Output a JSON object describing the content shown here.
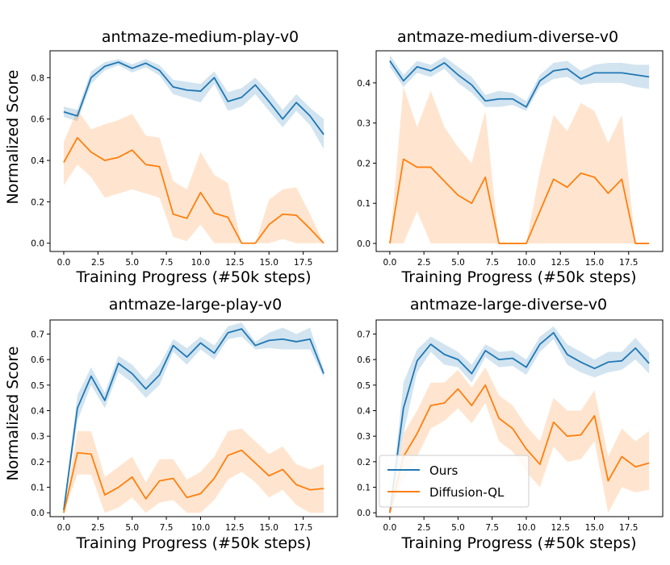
{
  "chart_data": [
    {
      "type": "line",
      "title": "antmaze-medium-play-v0",
      "xlabel": "Training Progress (#50k steps)",
      "ylabel": "Normalized Score",
      "xlim": [
        -1,
        20
      ],
      "ylim": [
        -0.04,
        0.93
      ],
      "xticks": [
        0,
        2.5,
        5,
        7.5,
        10,
        12.5,
        15,
        17.5
      ],
      "xtick_labels": [
        "0.0",
        "2.5",
        "5.0",
        "7.5",
        "10.0",
        "12.5",
        "15.0",
        "17.5"
      ],
      "yticks": [
        0,
        0.2,
        0.4,
        0.6,
        0.8
      ],
      "ytick_labels": [
        "0.0",
        "0.2",
        "0.4",
        "0.6",
        "0.8"
      ],
      "x": [
        0,
        1,
        2,
        3,
        4,
        5,
        6,
        7,
        8,
        9,
        10,
        11,
        12,
        13,
        14,
        15,
        16,
        17,
        18,
        19
      ],
      "series": [
        {
          "name": "Ours",
          "color": "#1f77b4",
          "values": [
            0.635,
            0.615,
            0.8,
            0.855,
            0.875,
            0.845,
            0.87,
            0.835,
            0.755,
            0.74,
            0.735,
            0.8,
            0.685,
            0.705,
            0.765,
            0.685,
            0.6,
            0.68,
            0.615,
            0.525
          ],
          "lower": [
            0.61,
            0.59,
            0.77,
            0.835,
            0.86,
            0.825,
            0.85,
            0.81,
            0.72,
            0.7,
            0.68,
            0.77,
            0.64,
            0.66,
            0.72,
            0.64,
            0.56,
            0.64,
            0.57,
            0.455
          ],
          "upper": [
            0.66,
            0.645,
            0.83,
            0.875,
            0.89,
            0.865,
            0.89,
            0.86,
            0.79,
            0.78,
            0.77,
            0.83,
            0.73,
            0.75,
            0.8,
            0.73,
            0.645,
            0.72,
            0.655,
            0.6
          ]
        },
        {
          "name": "Diffusion-QL",
          "color": "#ff7f0e",
          "values": [
            0.39,
            0.51,
            0.44,
            0.4,
            0.415,
            0.45,
            0.38,
            0.37,
            0.14,
            0.12,
            0.245,
            0.145,
            0.125,
            0.0,
            0.0,
            0.09,
            0.14,
            0.135,
            0.07,
            0.0
          ],
          "lower": [
            0.28,
            0.38,
            0.32,
            0.22,
            0.24,
            0.26,
            0.24,
            0.22,
            0.03,
            0.01,
            0.09,
            0.0,
            0.0,
            0.0,
            0.0,
            0.0,
            0.02,
            0.0,
            0.0,
            0.0
          ],
          "upper": [
            0.49,
            0.645,
            0.55,
            0.575,
            0.595,
            0.625,
            0.52,
            0.51,
            0.3,
            0.26,
            0.44,
            0.33,
            0.29,
            0.0,
            0.0,
            0.21,
            0.26,
            0.27,
            0.14,
            0.0
          ]
        }
      ]
    },
    {
      "type": "line",
      "title": "antmaze-medium-diverse-v0",
      "xlabel": "Training Progress (#50k steps)",
      "ylabel": "",
      "xlim": [
        -1,
        20
      ],
      "ylim": [
        -0.02,
        0.48
      ],
      "xticks": [
        0,
        2.5,
        5,
        7.5,
        10,
        12.5,
        15,
        17.5
      ],
      "xtick_labels": [
        "0.0",
        "2.5",
        "5.0",
        "7.5",
        "10.0",
        "12.5",
        "15.0",
        "17.5"
      ],
      "yticks": [
        0,
        0.1,
        0.2,
        0.3,
        0.4
      ],
      "ytick_labels": [
        "0.0",
        "0.1",
        "0.2",
        "0.3",
        "0.4"
      ],
      "x": [
        0,
        1,
        2,
        3,
        4,
        5,
        6,
        7,
        8,
        9,
        10,
        11,
        12,
        13,
        14,
        15,
        16,
        17,
        18,
        19
      ],
      "series": [
        {
          "name": "Ours",
          "color": "#1f77b4",
          "values": [
            0.455,
            0.405,
            0.44,
            0.43,
            0.45,
            0.42,
            0.395,
            0.355,
            0.36,
            0.36,
            0.34,
            0.405,
            0.43,
            0.435,
            0.41,
            0.425,
            0.425,
            0.425,
            0.42,
            0.415
          ],
          "lower": [
            0.44,
            0.39,
            0.425,
            0.415,
            0.435,
            0.4,
            0.375,
            0.34,
            0.34,
            0.345,
            0.33,
            0.39,
            0.41,
            0.415,
            0.395,
            0.4,
            0.4,
            0.4,
            0.39,
            0.385
          ],
          "upper": [
            0.47,
            0.42,
            0.455,
            0.445,
            0.465,
            0.44,
            0.415,
            0.37,
            0.38,
            0.375,
            0.355,
            0.42,
            0.45,
            0.455,
            0.43,
            0.445,
            0.45,
            0.45,
            0.445,
            0.445
          ]
        },
        {
          "name": "Diffusion-QL",
          "color": "#ff7f0e",
          "values": [
            0.0,
            0.21,
            0.19,
            0.19,
            0.155,
            0.12,
            0.1,
            0.165,
            0.0,
            0.0,
            0.0,
            0.08,
            0.16,
            0.14,
            0.175,
            0.165,
            0.125,
            0.16,
            0.0,
            0.0
          ],
          "lower": [
            0.0,
            0.0,
            0.08,
            0.0,
            0.0,
            0.0,
            0.0,
            0.0,
            0.0,
            0.0,
            0.0,
            0.0,
            0.0,
            0.0,
            0.0,
            0.0,
            0.0,
            0.0,
            0.0,
            0.0
          ],
          "upper": [
            0.0,
            0.39,
            0.29,
            0.38,
            0.29,
            0.24,
            0.2,
            0.33,
            0.0,
            0.0,
            0.0,
            0.18,
            0.32,
            0.28,
            0.35,
            0.33,
            0.25,
            0.32,
            0.0,
            0.0
          ]
        }
      ]
    },
    {
      "type": "line",
      "title": "antmaze-large-play-v0",
      "xlabel": "Training Progress (#50k steps)",
      "ylabel": "Normalized Score",
      "xlim": [
        -1,
        20
      ],
      "ylim": [
        -0.015,
        0.755
      ],
      "xticks": [
        0,
        2.5,
        5,
        7.5,
        10,
        12.5,
        15,
        17.5
      ],
      "xtick_labels": [
        "0.0",
        "2.5",
        "5.0",
        "7.5",
        "10.0",
        "12.5",
        "15.0",
        "17.5"
      ],
      "yticks": [
        0,
        0.1,
        0.2,
        0.3,
        0.4,
        0.5,
        0.6,
        0.7
      ],
      "ytick_labels": [
        "0.0",
        "0.1",
        "0.2",
        "0.3",
        "0.4",
        "0.5",
        "0.6",
        "0.7"
      ],
      "x": [
        0,
        1,
        2,
        3,
        4,
        5,
        6,
        7,
        8,
        9,
        10,
        11,
        12,
        13,
        14,
        15,
        16,
        17,
        18,
        19
      ],
      "series": [
        {
          "name": "Ours",
          "color": "#1f77b4",
          "values": [
            0.01,
            0.41,
            0.535,
            0.44,
            0.585,
            0.545,
            0.485,
            0.54,
            0.655,
            0.61,
            0.665,
            0.625,
            0.705,
            0.72,
            0.655,
            0.675,
            0.68,
            0.67,
            0.68,
            0.545
          ],
          "lower": [
            0.0,
            0.36,
            0.5,
            0.41,
            0.55,
            0.51,
            0.45,
            0.5,
            0.63,
            0.58,
            0.64,
            0.6,
            0.68,
            0.69,
            0.64,
            0.645,
            0.64,
            0.64,
            0.64,
            0.53
          ],
          "upper": [
            0.02,
            0.46,
            0.57,
            0.47,
            0.615,
            0.58,
            0.52,
            0.58,
            0.68,
            0.645,
            0.69,
            0.655,
            0.73,
            0.745,
            0.67,
            0.705,
            0.725,
            0.7,
            0.725,
            0.56
          ]
        },
        {
          "name": "Diffusion-QL",
          "color": "#ff7f0e",
          "values": [
            0.0,
            0.235,
            0.23,
            0.07,
            0.1,
            0.14,
            0.055,
            0.125,
            0.135,
            0.06,
            0.075,
            0.135,
            0.225,
            0.245,
            0.195,
            0.145,
            0.17,
            0.11,
            0.09,
            0.095
          ],
          "lower": [
            0.0,
            0.15,
            0.15,
            0.0,
            0.02,
            0.06,
            0.0,
            0.04,
            0.05,
            0.0,
            0.0,
            0.05,
            0.13,
            0.16,
            0.12,
            0.06,
            0.09,
            0.03,
            0.0,
            0.0
          ],
          "upper": [
            0.0,
            0.32,
            0.32,
            0.14,
            0.18,
            0.22,
            0.12,
            0.21,
            0.21,
            0.13,
            0.16,
            0.22,
            0.32,
            0.33,
            0.28,
            0.23,
            0.26,
            0.19,
            0.17,
            0.19
          ]
        }
      ]
    },
    {
      "type": "line",
      "title": "antmaze-large-diverse-v0",
      "xlabel": "Training Progress (#50k steps)",
      "ylabel": "",
      "xlim": [
        -1,
        20
      ],
      "ylim": [
        -0.015,
        0.755
      ],
      "xticks": [
        0,
        2.5,
        5,
        7.5,
        10,
        12.5,
        15,
        17.5
      ],
      "xtick_labels": [
        "0.0",
        "2.5",
        "5.0",
        "7.5",
        "10.0",
        "12.5",
        "15.0",
        "17.5"
      ],
      "yticks": [
        0,
        0.1,
        0.2,
        0.3,
        0.4,
        0.5,
        0.6,
        0.7
      ],
      "ytick_labels": [
        "0.0",
        "0.1",
        "0.2",
        "0.3",
        "0.4",
        "0.5",
        "0.6",
        "0.7"
      ],
      "x": [
        0,
        1,
        2,
        3,
        4,
        5,
        6,
        7,
        8,
        9,
        10,
        11,
        12,
        13,
        14,
        15,
        16,
        17,
        18,
        19
      ],
      "legend": {
        "position": "lower-left",
        "entries": [
          "Ours",
          "Diffusion-QL"
        ]
      },
      "series": [
        {
          "name": "Ours",
          "color": "#1f77b4",
          "values": [
            0.0,
            0.41,
            0.595,
            0.66,
            0.62,
            0.6,
            0.545,
            0.635,
            0.6,
            0.605,
            0.57,
            0.66,
            0.705,
            0.62,
            0.59,
            0.565,
            0.59,
            0.595,
            0.645,
            0.585
          ],
          "lower": [
            0.0,
            0.31,
            0.55,
            0.63,
            0.58,
            0.57,
            0.51,
            0.61,
            0.57,
            0.575,
            0.54,
            0.63,
            0.68,
            0.58,
            0.55,
            0.53,
            0.55,
            0.56,
            0.6,
            0.545
          ],
          "upper": [
            0.0,
            0.51,
            0.64,
            0.69,
            0.66,
            0.63,
            0.58,
            0.66,
            0.63,
            0.635,
            0.6,
            0.69,
            0.73,
            0.66,
            0.63,
            0.6,
            0.63,
            0.63,
            0.685,
            0.625
          ]
        },
        {
          "name": "Diffusion-QL",
          "color": "#ff7f0e",
          "values": [
            0.0,
            0.22,
            0.31,
            0.42,
            0.43,
            0.485,
            0.42,
            0.5,
            0.37,
            0.33,
            0.25,
            0.19,
            0.355,
            0.3,
            0.305,
            0.38,
            0.125,
            0.22,
            0.18,
            0.195
          ],
          "lower": [
            0.0,
            0.13,
            0.22,
            0.33,
            0.36,
            0.41,
            0.35,
            0.43,
            0.28,
            0.24,
            0.16,
            0.1,
            0.26,
            0.2,
            0.21,
            0.28,
            0.0,
            0.1,
            0.08,
            0.09
          ],
          "upper": [
            0.0,
            0.31,
            0.4,
            0.51,
            0.51,
            0.56,
            0.49,
            0.57,
            0.46,
            0.42,
            0.34,
            0.28,
            0.45,
            0.4,
            0.4,
            0.48,
            0.22,
            0.33,
            0.28,
            0.32
          ]
        }
      ]
    }
  ]
}
